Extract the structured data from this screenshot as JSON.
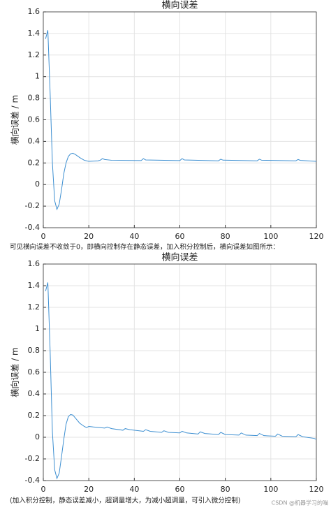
{
  "chart_data": [
    {
      "type": "line",
      "title": "横向误差",
      "ylabel": "横向误差 / m",
      "xlim": [
        0,
        120
      ],
      "xticks": [
        0,
        20,
        40,
        60,
        80,
        100,
        120
      ],
      "ylim": [
        -0.4,
        1.6
      ],
      "yticks": [
        -0.4,
        -0.2,
        0,
        0.2,
        0.4,
        0.6,
        0.8,
        1,
        1.2,
        1.4,
        1.6
      ],
      "grid": true,
      "series": [
        {
          "color": "#3d8fd1",
          "x": [
            1,
            2,
            3,
            4,
            5,
            6,
            7,
            8,
            9,
            10,
            11,
            12,
            13,
            14,
            16,
            18,
            20,
            24,
            25,
            26,
            27,
            30,
            43,
            44,
            45,
            60,
            61,
            62,
            77,
            78,
            79,
            94,
            95,
            96,
            111,
            112,
            113,
            120
          ],
          "values": [
            1.35,
            1.43,
            0.85,
            0.2,
            -0.15,
            -0.23,
            -0.18,
            -0.05,
            0.1,
            0.2,
            0.26,
            0.285,
            0.29,
            0.28,
            0.25,
            0.225,
            0.215,
            0.22,
            0.225,
            0.24,
            0.232,
            0.225,
            0.222,
            0.24,
            0.228,
            0.222,
            0.24,
            0.228,
            0.22,
            0.235,
            0.226,
            0.22,
            0.235,
            0.225,
            0.22,
            0.232,
            0.224,
            0.215
          ]
        }
      ]
    },
    {
      "type": "line",
      "title": "横向误差",
      "ylabel": "横向误差 / m",
      "xlim": [
        0,
        120
      ],
      "xticks": [
        0,
        20,
        40,
        60,
        80,
        100,
        120
      ],
      "ylim": [
        -0.4,
        1.6
      ],
      "yticks": [
        -0.4,
        -0.2,
        0,
        0.2,
        0.4,
        0.6,
        0.8,
        1,
        1.2,
        1.4,
        1.6
      ],
      "grid": true,
      "series": [
        {
          "color": "#3d8fd1",
          "x": [
            1,
            2,
            3,
            4,
            5,
            6,
            7,
            8,
            9,
            10,
            11,
            12,
            13,
            14,
            16,
            18,
            19,
            20,
            22,
            27,
            28,
            30,
            35,
            36,
            38,
            44,
            45,
            47,
            52,
            53,
            55,
            60,
            61,
            63,
            68,
            69,
            71,
            77,
            78,
            80,
            86,
            87,
            89,
            94,
            95,
            97,
            102,
            103,
            105,
            111,
            112,
            114,
            119,
            120
          ],
          "values": [
            1.35,
            1.43,
            0.8,
            0.05,
            -0.3,
            -0.38,
            -0.33,
            -0.18,
            -0.02,
            0.12,
            0.19,
            0.21,
            0.205,
            0.18,
            0.13,
            0.1,
            0.09,
            0.1,
            0.095,
            0.085,
            0.095,
            0.08,
            0.065,
            0.08,
            0.07,
            0.055,
            0.07,
            0.055,
            0.045,
            0.06,
            0.045,
            0.04,
            0.055,
            0.04,
            0.03,
            0.05,
            0.035,
            0.025,
            0.045,
            0.025,
            0.02,
            0.04,
            0.02,
            0.015,
            0.035,
            0.015,
            0.01,
            0.03,
            0.01,
            0.005,
            0.025,
            0.005,
            -0.01,
            -0.02
          ]
        }
      ]
    }
  ],
  "captions": [
    "可见横向误差不收敛于0，即横向控制存在静态误差，加入积分控制后，横向误差如图所示：",
    "(加入积分控制，静态误差减小，超调量增大，为减小超调量，可引入微分控制)"
  ],
  "watermark": "CSDN @机器学习的喵"
}
